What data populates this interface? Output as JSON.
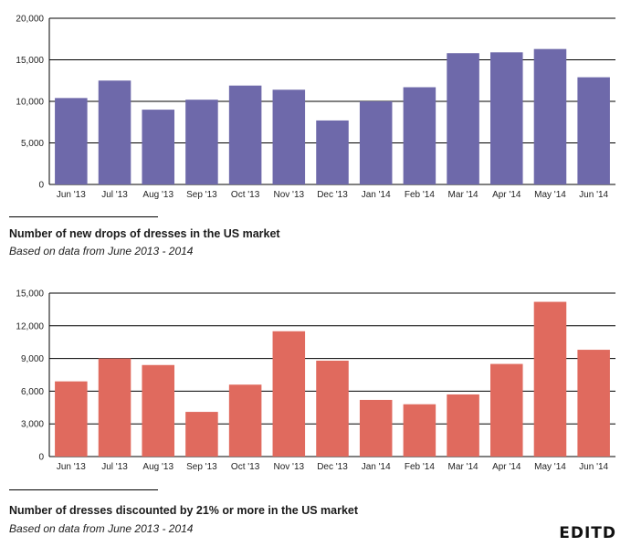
{
  "chart_data": [
    {
      "type": "bar",
      "title": "Number of new drops of dresses in the US market",
      "subtitle": "Based on data from June 2013 - 2014",
      "categories": [
        "Jun '13",
        "Jul '13",
        "Aug '13",
        "Sep '13",
        "Oct '13",
        "Nov '13",
        "Dec '13",
        "Jan '14",
        "Feb '14",
        "Mar '14",
        "Apr '14",
        "May '14",
        "Jun '14"
      ],
      "values": [
        10400,
        12500,
        9000,
        10200,
        11900,
        11400,
        7700,
        10000,
        11700,
        15800,
        15900,
        16300,
        12900
      ],
      "ylim": [
        0,
        20000
      ],
      "yticks": [
        0,
        5000,
        10000,
        15000,
        20000
      ],
      "ytick_labels": [
        "0",
        "5,000",
        "10,000",
        "15,000",
        "20,000"
      ],
      "grid": true,
      "color": "#6e69aa"
    },
    {
      "type": "bar",
      "title": "Number of dresses discounted by 21% or more in the US market",
      "subtitle": "Based on data from June 2013 - 2014",
      "categories": [
        "Jun '13",
        "Jul '13",
        "Aug '13",
        "Sep '13",
        "Oct '13",
        "Nov '13",
        "Dec '13",
        "Jan '14",
        "Feb '14",
        "Mar '14",
        "Apr '14",
        "May '14",
        "Jun '14"
      ],
      "values": [
        6900,
        9000,
        8400,
        4100,
        6600,
        11500,
        8800,
        5200,
        4800,
        5700,
        8500,
        14200,
        9800
      ],
      "ylim": [
        0,
        15000
      ],
      "yticks": [
        0,
        3000,
        6000,
        9000,
        12000,
        15000
      ],
      "ytick_labels": [
        "0",
        "3,000",
        "6,000",
        "9,000",
        "12,000",
        "15,000"
      ],
      "grid": true,
      "color": "#e06a5e"
    }
  ],
  "brand": "EDITD"
}
